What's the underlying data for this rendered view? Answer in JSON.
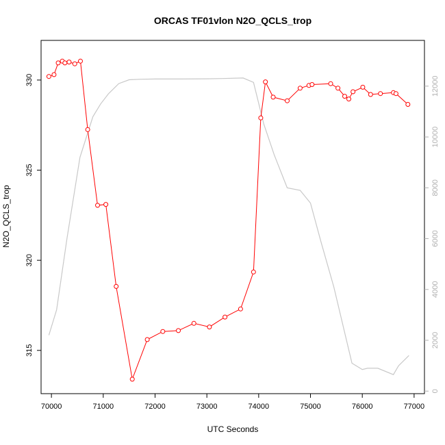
{
  "chart_data": {
    "type": "line",
    "title": "ORCAS TF01vlon N2O_QCLS_trop",
    "xlabel": "UTC Seconds",
    "ylabel": "N2O_QCLS_trop",
    "xlim": [
      69800,
      77200
    ],
    "ylim": [
      312.6,
      332.2
    ],
    "y2lim": [
      -100,
      13800
    ],
    "x_ticks": [
      70000,
      71000,
      72000,
      73000,
      74000,
      75000,
      76000,
      77000
    ],
    "y_ticks": [
      315,
      320,
      325,
      330
    ],
    "y2_ticks": [
      0,
      2000,
      4000,
      6000,
      8000,
      10000,
      12000
    ],
    "colors": {
      "primary": "#ff0000",
      "secondary": "#c8c8c8",
      "axis": "#000000",
      "secondary_tick": "#b0b0b0"
    },
    "series": [
      {
        "axis": "left",
        "style": "line+points",
        "x": [
          69950,
          70050,
          70130,
          70210,
          70260,
          70340,
          70450,
          70560,
          70700,
          70890,
          71050,
          71250,
          71560,
          71850,
          72150,
          72450,
          72750,
          73050,
          73350,
          73650,
          73900,
          74040,
          74130,
          74280,
          74550,
          74800,
          74970,
          75030,
          75390,
          75530,
          75660,
          75740,
          75820,
          76010,
          76160,
          76350,
          76600,
          76650,
          76880
        ],
        "y": [
          330.2,
          330.3,
          330.95,
          331.05,
          330.95,
          331.0,
          330.9,
          331.05,
          327.25,
          323.05,
          323.1,
          318.55,
          313.4,
          315.6,
          316.05,
          316.1,
          316.5,
          316.3,
          316.85,
          317.3,
          319.35,
          327.9,
          329.9,
          329.05,
          328.85,
          329.55,
          329.7,
          329.75,
          329.8,
          329.55,
          329.1,
          328.95,
          329.35,
          329.6,
          329.2,
          329.25,
          329.3,
          329.25,
          328.65
        ]
      },
      {
        "axis": "right",
        "style": "line",
        "x": [
          69950,
          70100,
          70300,
          70550,
          70800,
          70950,
          71100,
          71300,
          71500,
          71700,
          72000,
          72500,
          73000,
          73300,
          73700,
          73900,
          74100,
          74300,
          74550,
          74800,
          75000,
          75200,
          75450,
          75800,
          76000,
          76100,
          76300,
          76600,
          76700,
          76900
        ],
        "y": [
          2200,
          3200,
          6000,
          9200,
          10800,
          11300,
          11700,
          12100,
          12250,
          12270,
          12280,
          12280,
          12290,
          12300,
          12320,
          12150,
          10500,
          9300,
          8000,
          7900,
          7400,
          5900,
          4100,
          1100,
          850,
          900,
          900,
          650,
          1000,
          1400
        ]
      }
    ]
  }
}
